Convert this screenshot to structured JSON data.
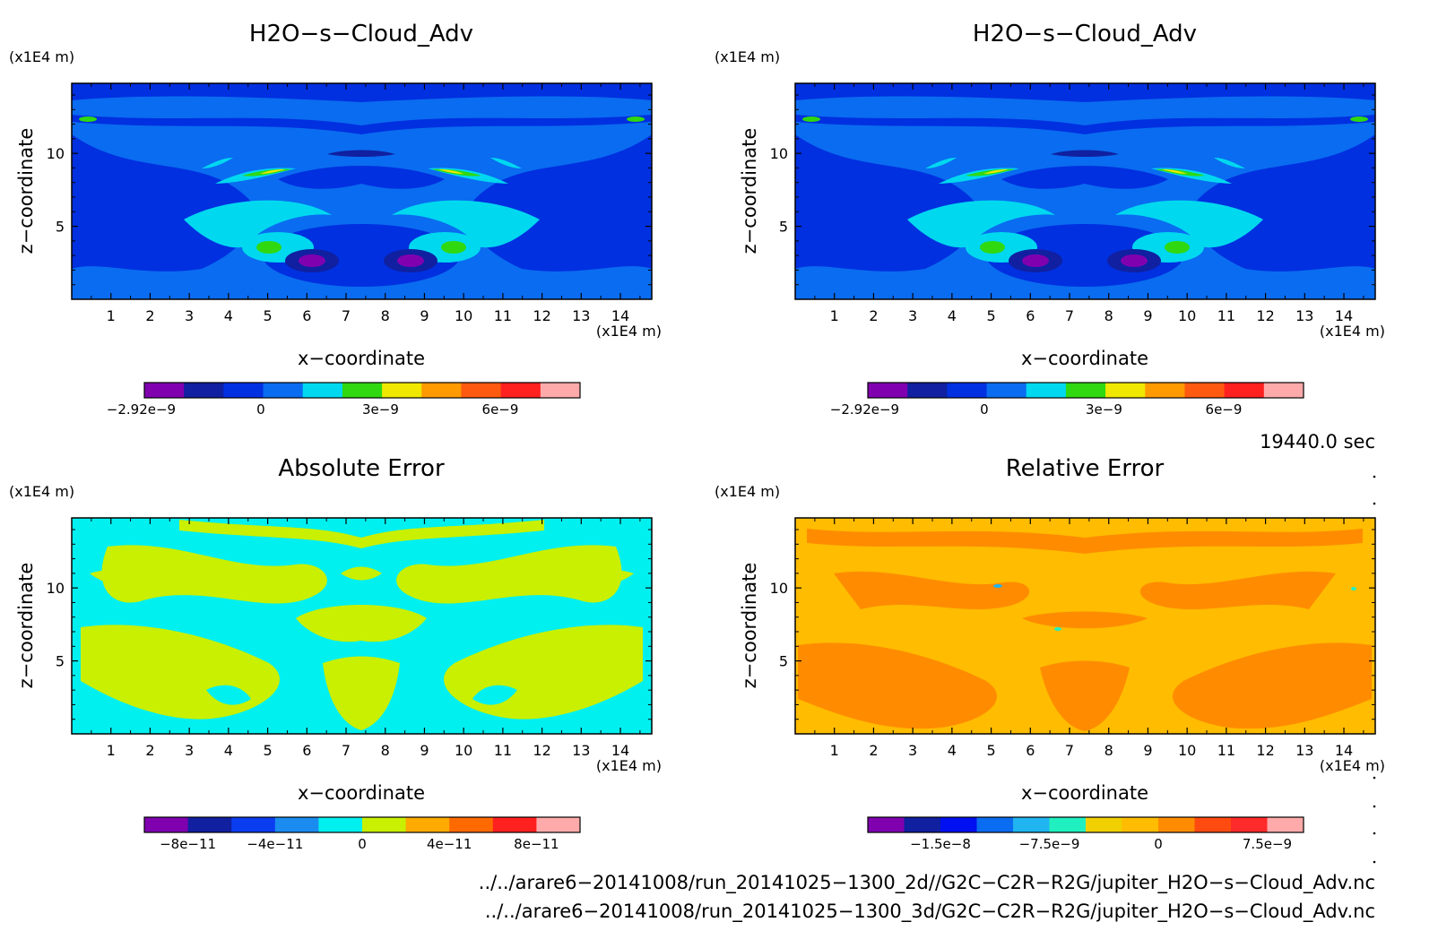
{
  "panels": [
    {
      "title": "H2O−s−Cloud_Adv",
      "zunit": "(x1E4 m)",
      "xunit": "(x1E4 m)",
      "xlabel": "x−coordinate",
      "ylabel": "z−coordinate",
      "colorbar": {
        "colors": [
          "#8000b0",
          "#1020a0",
          "#0030e0",
          "#0a6cf0",
          "#00d8f0",
          "#30d810",
          "#f0e800",
          "#ff9a00",
          "#ff5a10",
          "#ff2020",
          "#ffaaaa"
        ],
        "ticks": [
          "−2.92e−9",
          "0",
          "3e−9",
          "6e−9"
        ]
      }
    },
    {
      "title": "H2O−s−Cloud_Adv",
      "zunit": "(x1E4 m)",
      "xunit": "(x1E4 m)",
      "xlabel": "x−coordinate",
      "ylabel": "z−coordinate",
      "colorbar": {
        "colors": [
          "#8000b0",
          "#1020a0",
          "#0030e0",
          "#0a6cf0",
          "#00d8f0",
          "#30d810",
          "#f0e800",
          "#ff9a00",
          "#ff5a10",
          "#ff2020",
          "#ffaaaa"
        ],
        "ticks": [
          "−2.92e−9",
          "0",
          "3e−9",
          "6e−9"
        ]
      }
    },
    {
      "title": "Absolute Error",
      "zunit": "(x1E4 m)",
      "xunit": "(x1E4 m)",
      "xlabel": "x−coordinate",
      "ylabel": "z−coordinate",
      "colorbar": {
        "colors": [
          "#8000b0",
          "#1020a0",
          "#0a3cf0",
          "#1a8cf0",
          "#00f0f0",
          "#c8f000",
          "#ffaa00",
          "#ff6a00",
          "#ff2020",
          "#ffaaaa"
        ],
        "ticks": [
          "−8e−11",
          "−4e−11",
          "0",
          "4e−11",
          "8e−11"
        ]
      }
    },
    {
      "title": "Relative Error",
      "zunit": "(x1E4 m)",
      "xunit": "(x1E4 m)",
      "xlabel": "x−coordinate",
      "ylabel": "z−coordinate",
      "colorbar": {
        "colors": [
          "#8000b0",
          "#1020a0",
          "#0010f0",
          "#0a6cf0",
          "#20b4f0",
          "#20f0c0",
          "#f0d000",
          "#ffbc00",
          "#ff8c00",
          "#ff4a10",
          "#ff2a2a",
          "#ffaaaa"
        ],
        "ticks": [
          "−1.5e−8",
          "−7.5e−9",
          "0",
          "7.5e−9"
        ]
      }
    }
  ],
  "time_label": "19440.0 sec",
  "file_paths": [
    "../../arare6−20141008/run_20141025−1300_2d//G2C−C2R−R2G/jupiter_H2O−s−Cloud_Adv.nc",
    "../../arare6−20141008/run_20141025−1300_3d/G2C−C2R−R2G/jupiter_H2O−s−Cloud_Adv.nc"
  ],
  "chart_data": [
    {
      "type": "heatmap",
      "title": "H2O−s−Cloud_Adv",
      "xlabel": "x−coordinate",
      "ylabel": "z−coordinate",
      "x_ticks": [
        1,
        2,
        3,
        4,
        5,
        6,
        7,
        8,
        9,
        10,
        11,
        12,
        13,
        14
      ],
      "y_ticks": [
        5,
        10
      ],
      "xlim": [
        0,
        14.8
      ],
      "ylim": [
        0,
        14.8
      ],
      "colorbar_ticks": [
        "−2.92e−9",
        "0",
        "3e−9",
        "6e−9"
      ],
      "colorbar_range": [
        -2.92e-09,
        8e-09
      ]
    },
    {
      "type": "heatmap",
      "title": "H2O−s−Cloud_Adv",
      "xlabel": "x−coordinate",
      "ylabel": "z−coordinate",
      "x_ticks": [
        1,
        2,
        3,
        4,
        5,
        6,
        7,
        8,
        9,
        10,
        11,
        12,
        13,
        14
      ],
      "y_ticks": [
        5,
        10
      ],
      "xlim": [
        0,
        14.8
      ],
      "ylim": [
        0,
        14.8
      ],
      "colorbar_ticks": [
        "−2.92e−9",
        "0",
        "3e−9",
        "6e−9"
      ],
      "colorbar_range": [
        -2.92e-09,
        8e-09
      ]
    },
    {
      "type": "heatmap",
      "title": "Absolute Error",
      "xlabel": "x−coordinate",
      "ylabel": "z−coordinate",
      "x_ticks": [
        1,
        2,
        3,
        4,
        5,
        6,
        7,
        8,
        9,
        10,
        11,
        12,
        13,
        14
      ],
      "y_ticks": [
        5,
        10
      ],
      "xlim": [
        0,
        14.8
      ],
      "ylim": [
        0,
        14.8
      ],
      "colorbar_ticks": [
        "−8e−11",
        "−4e−11",
        "0",
        "4e−11",
        "8e−11"
      ],
      "colorbar_range": [
        -1e-10,
        1e-10
      ]
    },
    {
      "type": "heatmap",
      "title": "Relative Error",
      "xlabel": "x−coordinate",
      "ylabel": "z−coordinate",
      "x_ticks": [
        1,
        2,
        3,
        4,
        5,
        6,
        7,
        8,
        9,
        10,
        11,
        12,
        13,
        14
      ],
      "y_ticks": [
        5,
        10
      ],
      "xlim": [
        0,
        14.8
      ],
      "ylim": [
        0,
        14.8
      ],
      "colorbar_ticks": [
        "−1.5e−8",
        "−7.5e−9",
        "0",
        "7.5e−9"
      ],
      "colorbar_range": [
        -2e-08,
        1e-08
      ]
    }
  ]
}
